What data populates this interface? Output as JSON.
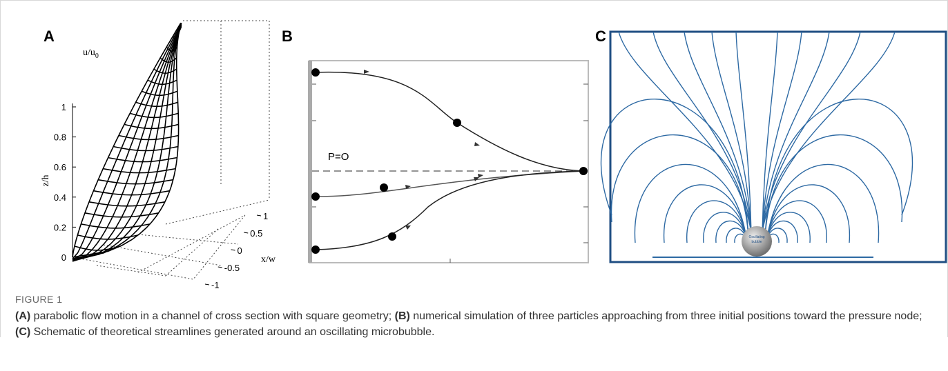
{
  "panels": {
    "a": {
      "label": "A",
      "u_label": "u/u",
      "u_sub": "0",
      "z_label": "z/h",
      "z_ticks": [
        1,
        0.8,
        0.6,
        0.4,
        0.2,
        0
      ],
      "x_label": "x/w",
      "x_ticks": [
        1,
        0.5,
        0,
        -0.5,
        -1
      ]
    },
    "b": {
      "label": "B",
      "annotation": "P=O"
    },
    "c": {
      "label": "C",
      "bubble_text": [
        "Oscillating",
        "bubble"
      ]
    }
  },
  "caption": {
    "title": "FIGURE 1",
    "segments": [
      {
        "label": "(A)",
        "text": "parabolic flow motion in a channel of cross section with square geometry;"
      },
      {
        "label": "(B)",
        "text": "numerical simulation of three particles approaching from three initial positions toward the pressure node;"
      },
      {
        "label": "(C)",
        "text": "Schematic of theoretical streamlines generated around an oscillating microbubble."
      }
    ]
  }
}
